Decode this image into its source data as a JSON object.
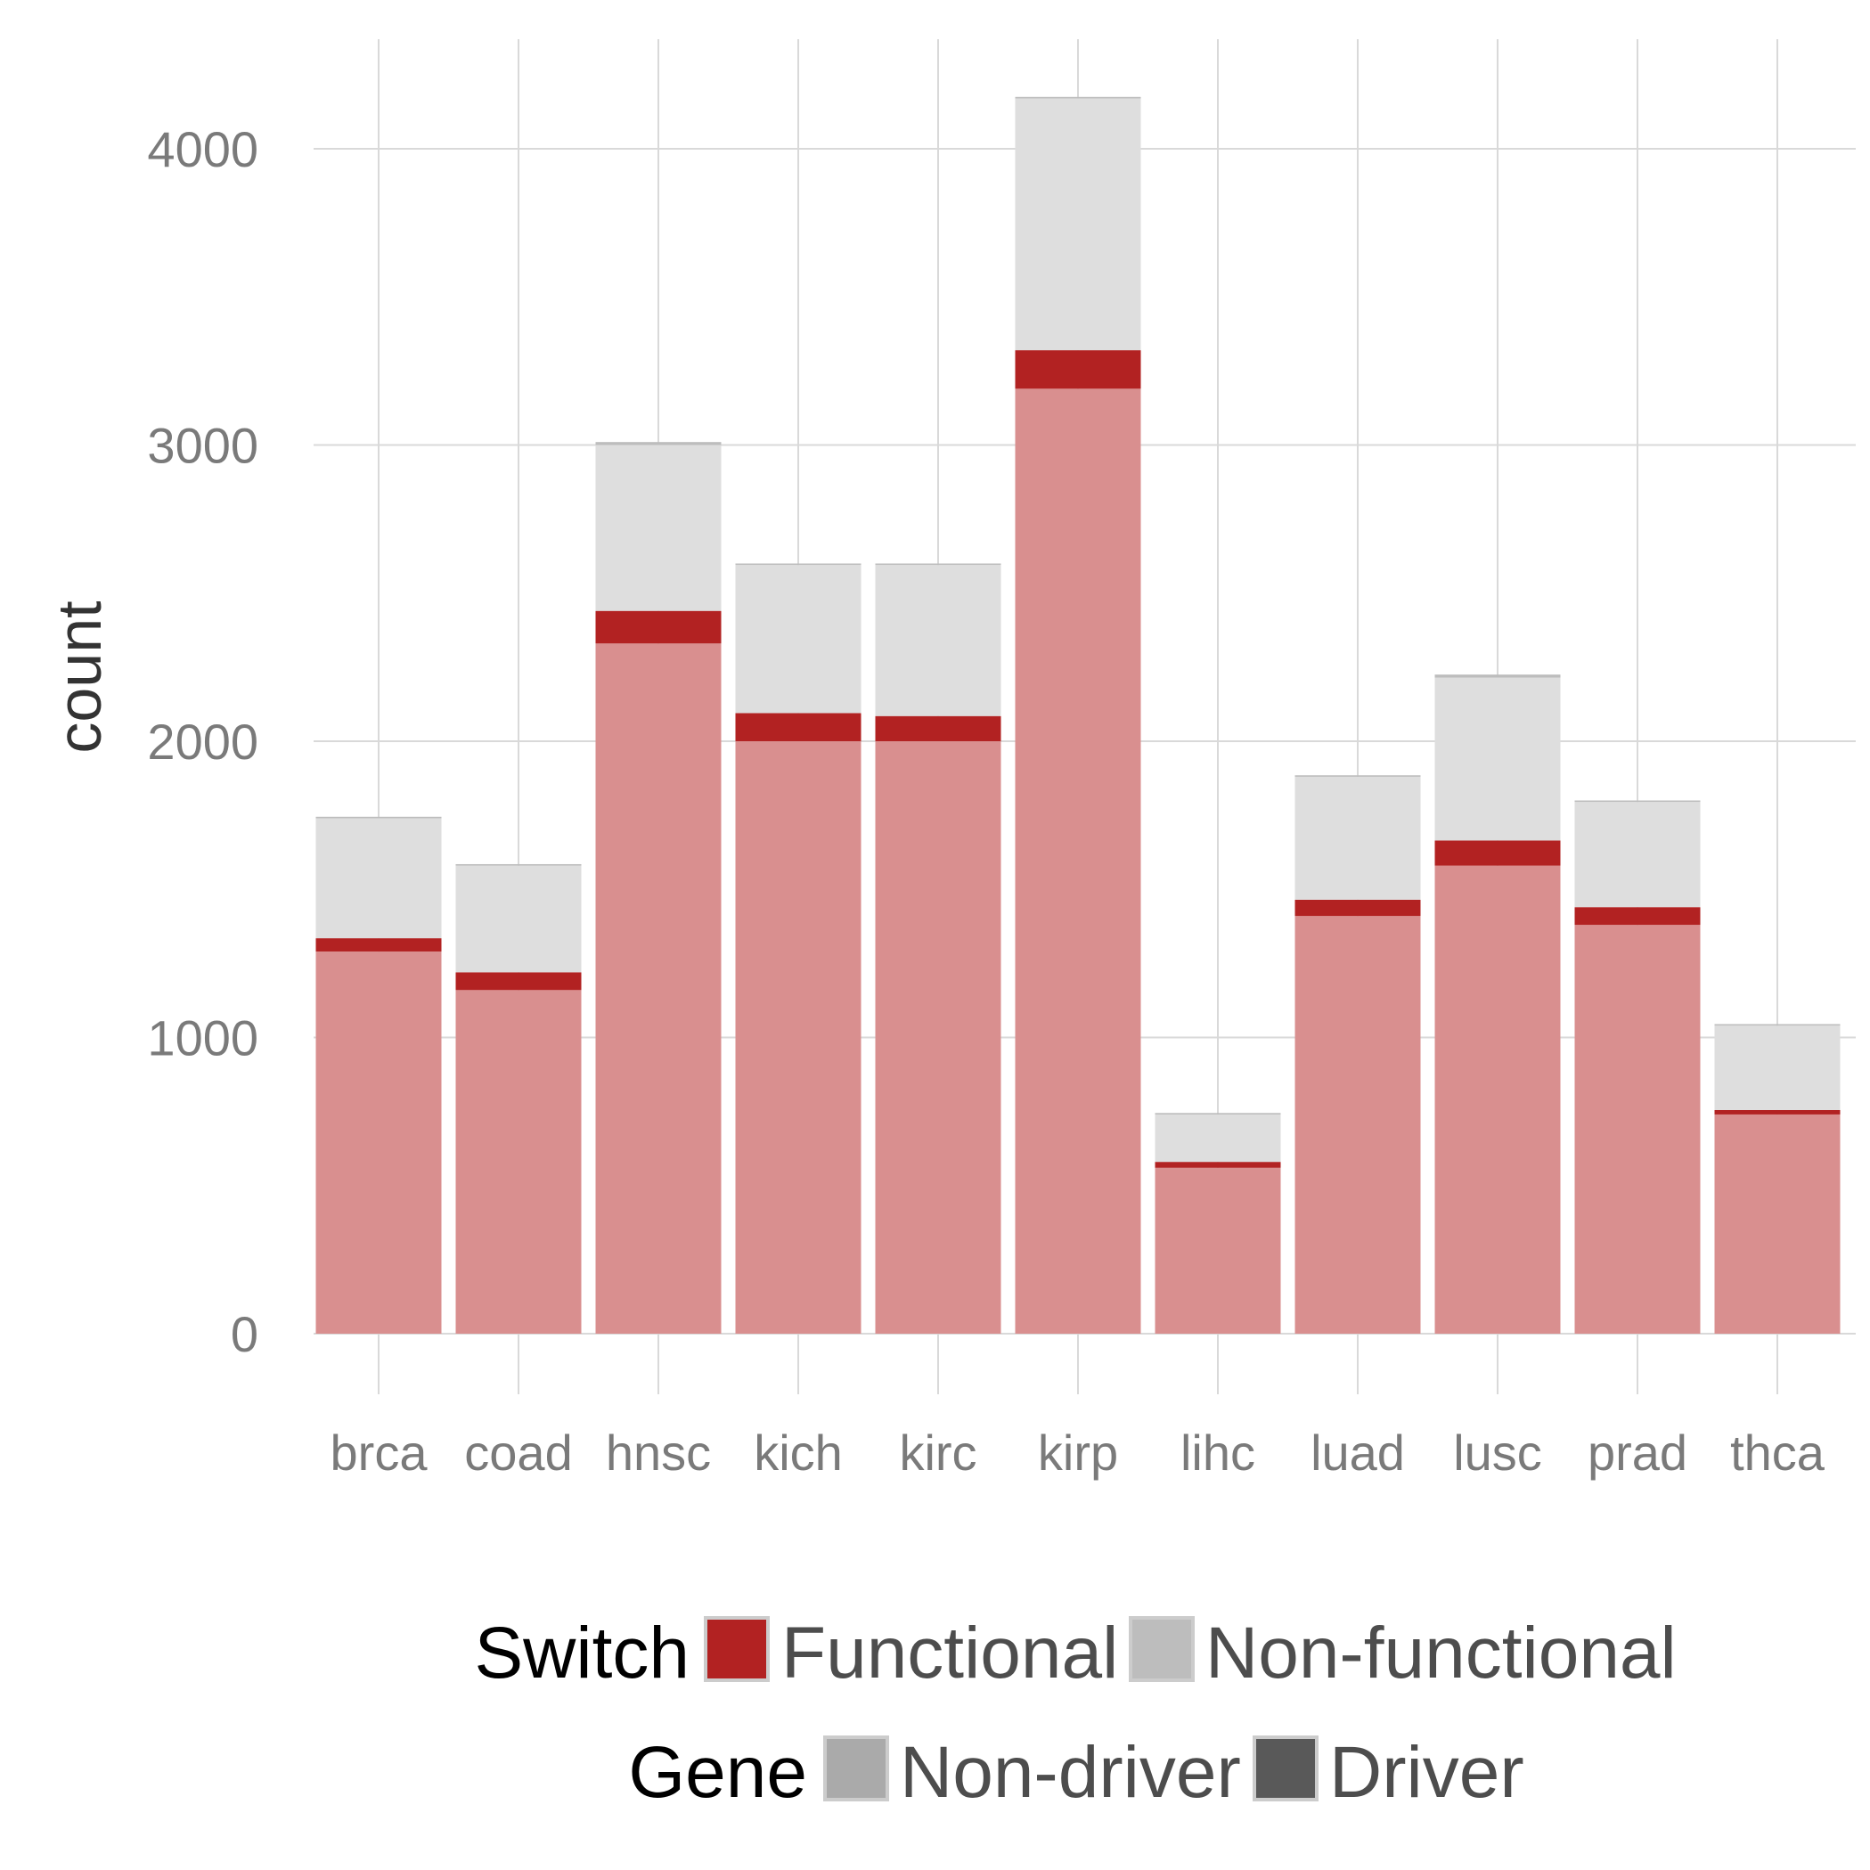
{
  "chart_data": {
    "type": "bar",
    "stacked": true,
    "ylabel": "count",
    "xlabel": "",
    "ylim": [
      -200,
      4380
    ],
    "yticks": [
      "0",
      "1000",
      "2000",
      "3000",
      "4000"
    ],
    "grid": true,
    "legend_position": "bottom",
    "categories": [
      "brca",
      "coad",
      "hnsc",
      "kich",
      "kirc",
      "kirp",
      "lihc",
      "luad",
      "lusc",
      "prad",
      "thca"
    ],
    "series": [
      {
        "switch": "Functional",
        "gene": "Non-driver",
        "color": "#d98f8f",
        "values": [
          1290,
          1160,
          2330,
          2000,
          2000,
          3190,
          560,
          1410,
          1580,
          1380,
          740
        ]
      },
      {
        "switch": "Functional",
        "gene": "Driver",
        "color": "#b22222",
        "values": [
          45,
          60,
          110,
          95,
          85,
          130,
          20,
          55,
          85,
          60,
          15
        ]
      },
      {
        "switch": "Non-functional",
        "gene": "Non-driver",
        "color": "#dedede",
        "values": [
          405,
          360,
          560,
          500,
          510,
          850,
          160,
          415,
          550,
          355,
          285
        ]
      },
      {
        "switch": "Non-functional",
        "gene": "Driver",
        "color": "#bdbdbd",
        "values": [
          5,
          5,
          10,
          5,
          5,
          5,
          5,
          5,
          10,
          5,
          5
        ]
      }
    ],
    "legend": {
      "switch_title": "Switch",
      "switch_items": [
        {
          "label": "Functional",
          "color": "#b22222"
        },
        {
          "label": "Non-functional",
          "color": "#bdbdbd"
        }
      ],
      "gene_title": "Gene",
      "gene_items": [
        {
          "label": "Non-driver",
          "color": "#aaaaaa"
        },
        {
          "label": "Driver",
          "color": "#595959"
        }
      ]
    }
  }
}
